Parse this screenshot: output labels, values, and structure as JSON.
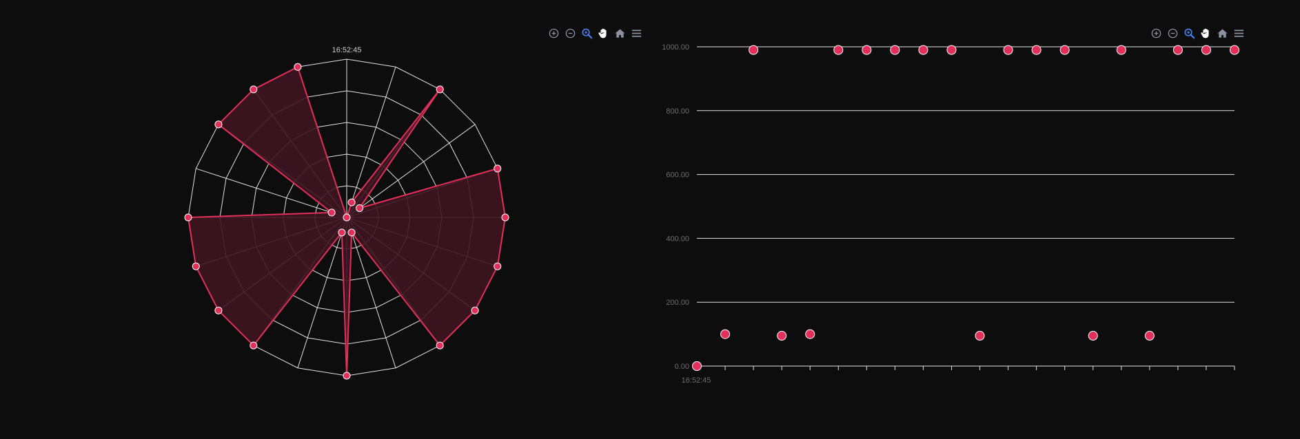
{
  "colors": {
    "background": "#0d0d0e",
    "grid": "#e4e4e4",
    "series": "#e3305a",
    "fill": "#3e1520",
    "toolbar_icon": "#8a91a0",
    "toolbar_active": "#4a7de8",
    "axis_text": "#6e6e6e"
  },
  "toolbar": {
    "icons": [
      "zoom-in-icon",
      "zoom-out-icon",
      "selection-zoom-icon",
      "pan-icon",
      "home-icon",
      "menu-icon"
    ]
  },
  "chart_data": [
    {
      "type": "radar",
      "time_label": "16:52:45",
      "categories_count": 20,
      "ylim": [
        0,
        1000
      ],
      "grid": true,
      "values": [
        0,
        100,
        1000,
        100,
        1000,
        1000,
        1000,
        1000,
        1000,
        100,
        1000,
        100,
        1000,
        1000,
        1000,
        1000,
        100,
        1000,
        1000,
        1000
      ]
    },
    {
      "type": "scatter",
      "x_tick_label": "16:52:45",
      "y_ticks": [
        "0.00",
        "200.00",
        "400.00",
        "600.00",
        "800.00",
        "1000.00"
      ],
      "ylim": [
        0,
        1000
      ],
      "grid": true,
      "values": [
        0,
        100,
        990,
        95,
        100,
        990,
        990,
        990,
        990,
        990,
        95,
        990,
        990,
        990,
        95,
        990,
        95,
        990,
        990,
        990
      ]
    }
  ]
}
